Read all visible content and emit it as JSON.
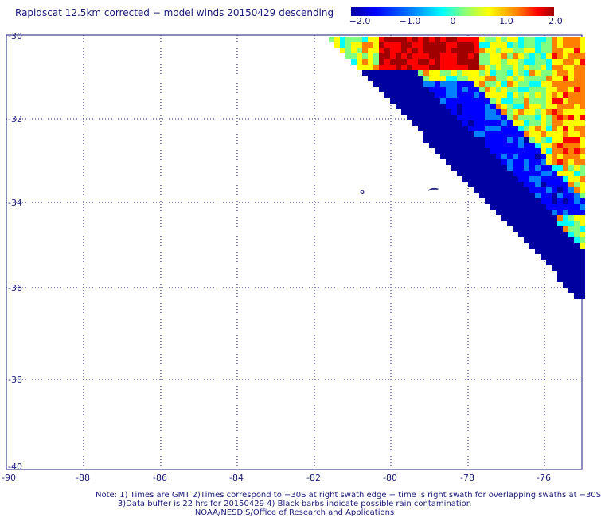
{
  "title": "Rapidscat 12.5km corrected − model winds 20150429 descending",
  "colorbar": {
    "tick_labels": [
      "−2.0",
      "−1.0",
      "0",
      "1.0",
      "2.0"
    ],
    "colors": [
      "#0000a0",
      "#0000ff",
      "#0080ff",
      "#00ffff",
      "#80ff80",
      "#ffff00",
      "#ff8000",
      "#ff0000",
      "#a00000"
    ]
  },
  "map": {
    "lat_ticks": [
      "-30",
      "-32",
      "-34",
      "-36",
      "-38",
      "-40"
    ],
    "lon_ticks": [
      "-90",
      "-88",
      "-86",
      "-84",
      "-82",
      "-80",
      "-78",
      "-76"
    ]
  },
  "notes": {
    "line1": "Note: 1) Times are GMT 2)Times correspond to −30S at right swath edge − time is right swath for overlapping swaths at −30S",
    "line2": "3)Data buffer is 22 hrs for 20150429 4) Black barbs indicate possible rain contamination",
    "line3": "NOAA/NESDIS/Office of Research and Applications"
  }
}
